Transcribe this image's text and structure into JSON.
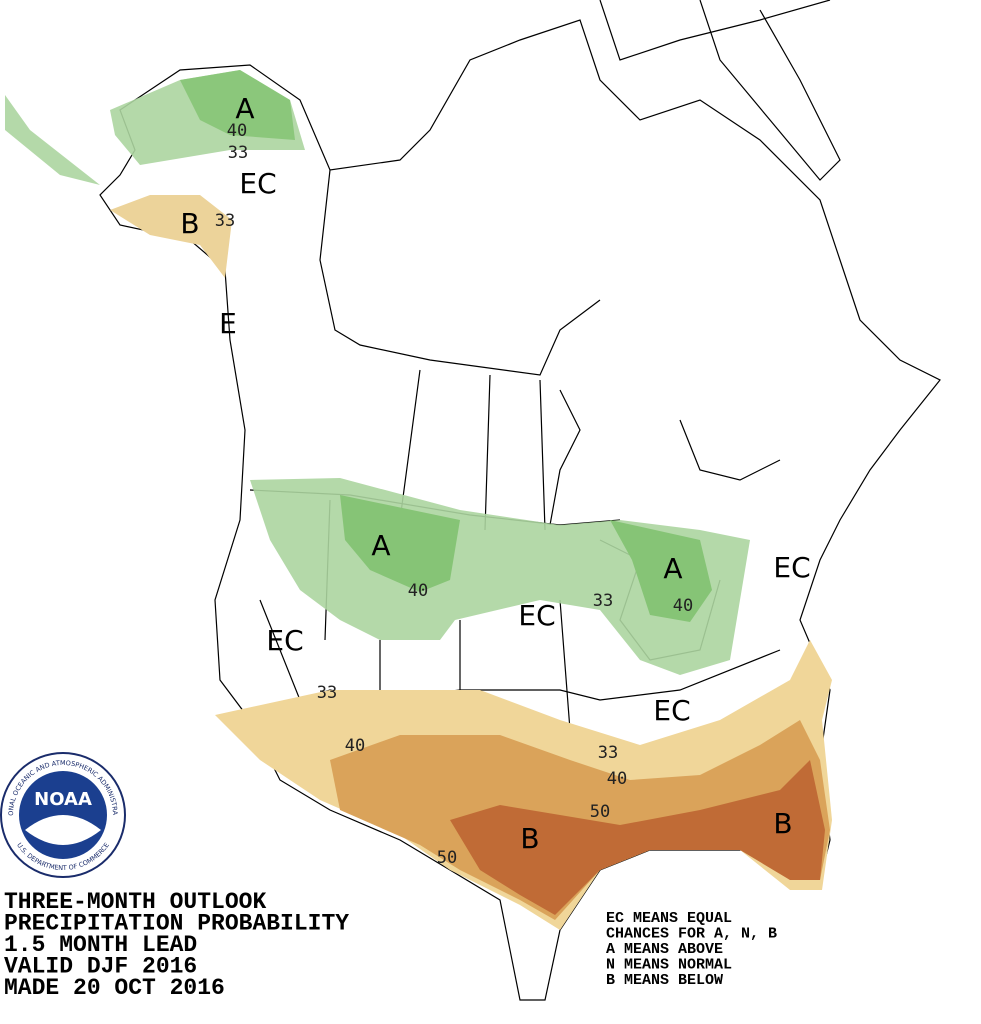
{
  "caption": {
    "lines": [
      "THREE-MONTH OUTLOOK",
      "PRECIPITATION PROBABILITY",
      "1.5 MONTH LEAD",
      "VALID DJF 2016",
      "MADE 20 OCT 2016"
    ]
  },
  "legend": {
    "lines": [
      "EC MEANS EQUAL",
      "CHANCES FOR A, N, B",
      "A MEANS ABOVE",
      "N MEANS NORMAL",
      "B MEANS BELOW"
    ]
  },
  "region_labels": [
    "A",
    "EC",
    "B",
    "E",
    "A",
    "EC",
    "EC",
    "A",
    "EC",
    "EC",
    "B",
    "B"
  ],
  "contour_labels": [
    40,
    33,
    33,
    40,
    33,
    40,
    33,
    40,
    33,
    40,
    50,
    50
  ],
  "logo": {
    "name": "NOAA",
    "ring_top": "NATIONAL OCEANIC AND ATMOSPHERIC ADMINISTRATION",
    "ring_bottom": "U.S. DEPARTMENT OF COMMERCE"
  }
}
